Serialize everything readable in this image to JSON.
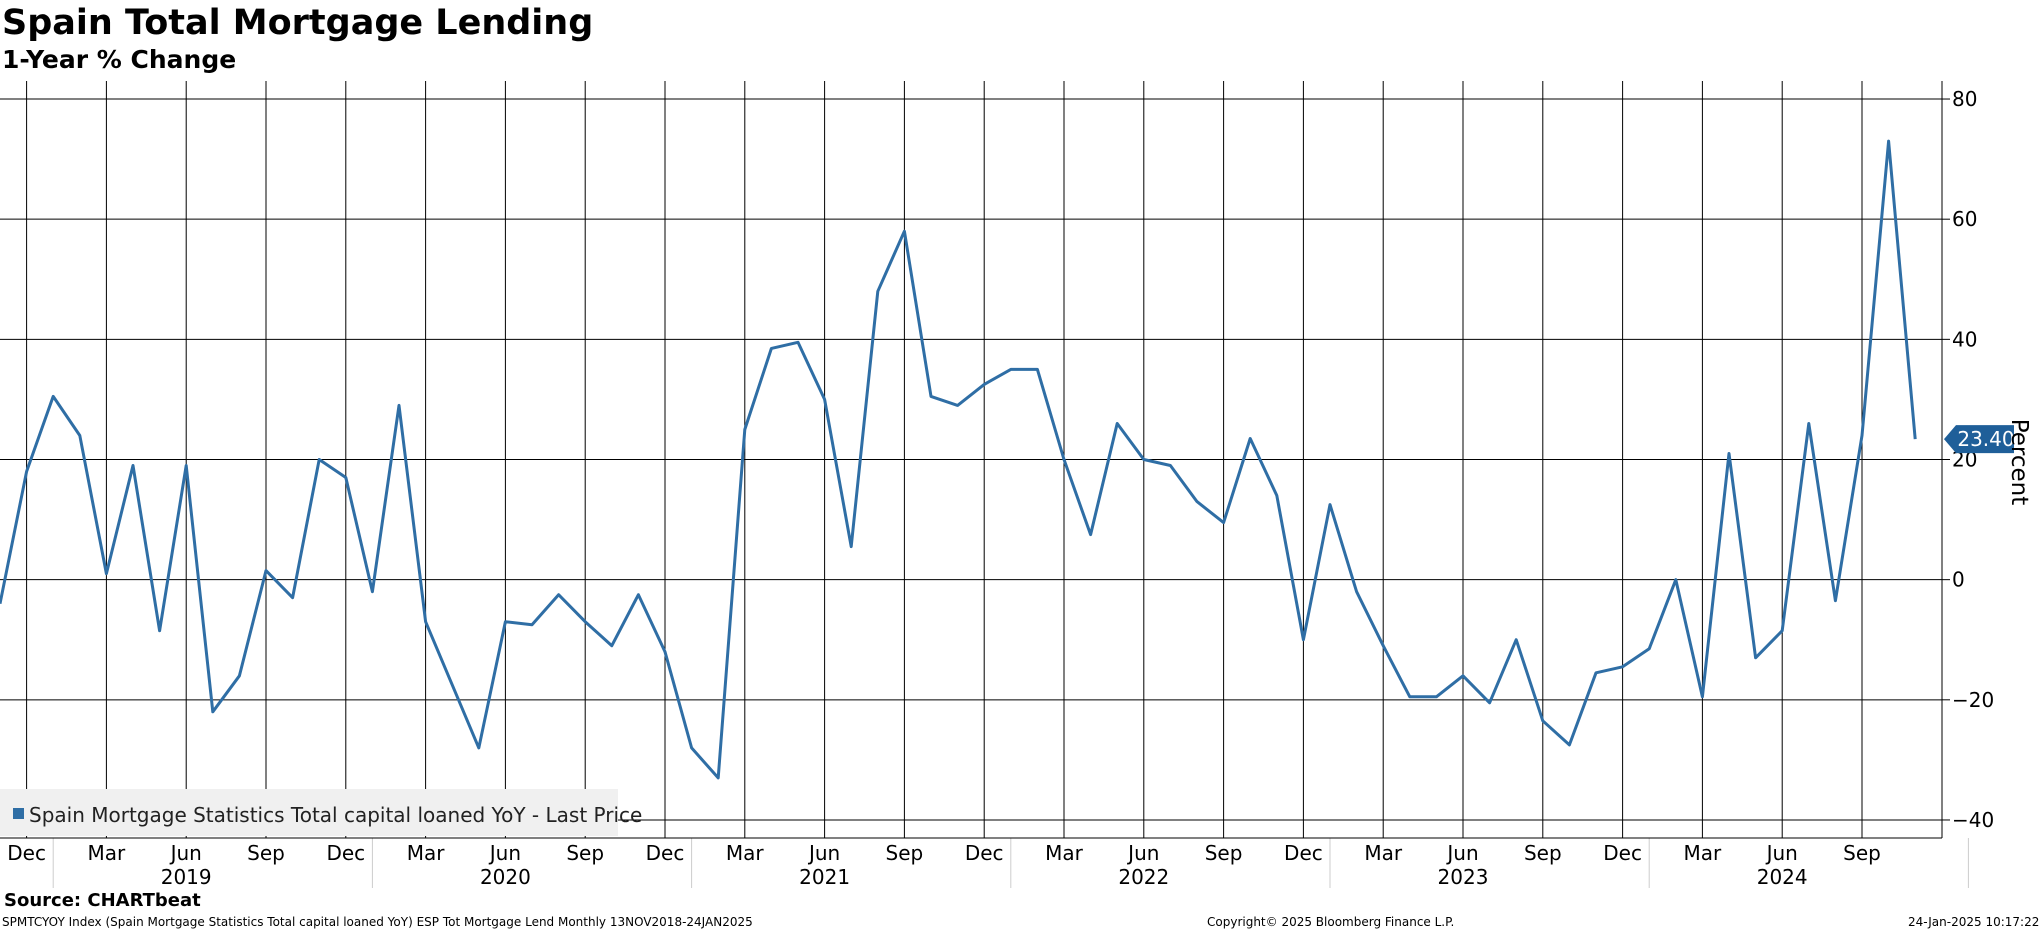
{
  "header": {
    "title": "Spain Total Mortgage Lending",
    "subtitle": "1-Year % Change"
  },
  "footer": {
    "source": "Source: CHARTbeat",
    "ticker_info": "SPMTCYOY Index (Spain Mortgage Statistics Total capital loaned YoY) ESP Tot Mortgage Lend  Monthly 13NOV2018-24JAN2025",
    "copyright": "Copyright© 2025 Bloomberg Finance L.P.",
    "timestamp": "24-Jan-2025 10:17:22"
  },
  "colors": {
    "series": "#2f6ea5",
    "grid": "#000000",
    "legend_bg": "#f0f0f0",
    "last_value_bg": "#1f5f99"
  },
  "chart_data": {
    "type": "line",
    "title": "Spain Total Mortgage Lending",
    "subtitle": "1-Year % Change",
    "ylabel": "Percent",
    "y_axis_side": "right",
    "ylim": [
      -43,
      83
    ],
    "yticks": [
      80,
      60,
      40,
      20,
      0,
      -20,
      -40
    ],
    "grid": true,
    "legend_position": "bottom-left",
    "last_value_label": "23.40",
    "x_tick_labels": [
      "Dec",
      "Mar",
      "Jun",
      "Sep",
      "Dec",
      "Mar",
      "Jun",
      "Sep",
      "Dec",
      "Mar",
      "Jun",
      "Sep",
      "Dec",
      "Mar",
      "Jun",
      "Sep",
      "Dec",
      "Mar",
      "Jun",
      "Sep",
      "Dec",
      "Mar",
      "Jun",
      "Sep"
    ],
    "x_tick_months": [
      1,
      4,
      7,
      10,
      13,
      16,
      19,
      22,
      25,
      28,
      31,
      34,
      37,
      40,
      43,
      46,
      49,
      52,
      55,
      58,
      61,
      64,
      67,
      70
    ],
    "year_labels": [
      "2019",
      "2020",
      "2021",
      "2022",
      "2023",
      "2024"
    ],
    "year_label_months": [
      7,
      19,
      31,
      43,
      55,
      67
    ],
    "x_start": "Nov 2018",
    "x_end": "Jan 2025",
    "series": [
      {
        "name": "Spain Mortgage Statistics Total capital loaned YoY - Last Price",
        "x_start": "Nov 2018",
        "values": [
          -4,
          18,
          30.5,
          24,
          1,
          19,
          -8.5,
          19,
          -22,
          -16,
          1.5,
          -3,
          20,
          17,
          -2,
          29,
          -7,
          -17.5,
          -28,
          -7,
          -7.5,
          -2.5,
          -7,
          -11,
          -2.5,
          -12,
          -28,
          -33,
          25,
          38.5,
          39.5,
          30,
          5.5,
          48,
          58,
          30.5,
          29,
          32.5,
          35,
          35,
          20,
          7.5,
          26,
          20,
          19,
          13,
          9.5,
          23.5,
          14,
          -10,
          12.5,
          -2,
          -11,
          -19.5,
          -19.5,
          -16,
          -20.5,
          -10,
          -23.5,
          -27.5,
          -15.5,
          -14.5,
          -11.5,
          0,
          -19.5,
          21,
          -13,
          -8.5,
          26,
          -3.5,
          24,
          73,
          23.4
        ]
      }
    ]
  }
}
